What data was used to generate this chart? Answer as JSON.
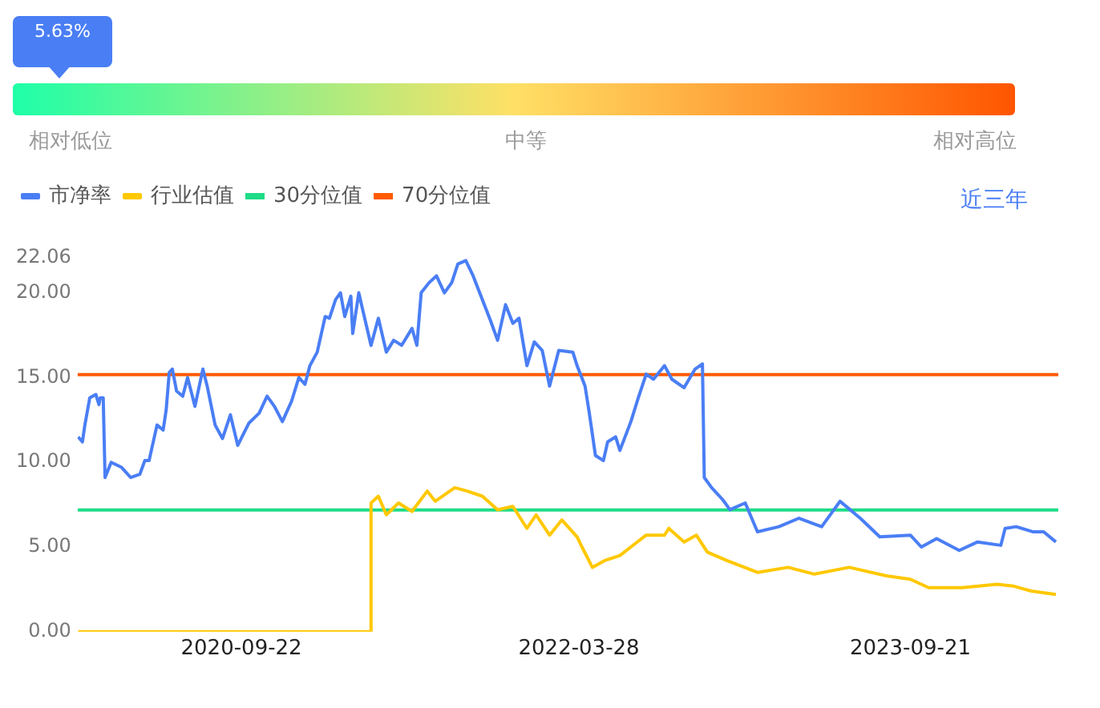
{
  "chart_data": {
    "type": "line",
    "annotations": [
      "5.63%",
      "相对低位",
      "中等",
      "相对高位",
      "近三年"
    ],
    "series": [
      {
        "name": "市净率",
        "color": "#4a7ef5",
        "x": [
          "2019-12-30",
          "2020-01-06",
          "2020-01-10",
          "2020-01-18",
          "2020-01-28",
          "2020-02-02",
          "2020-02-04",
          "2020-02-09",
          "2020-02-12",
          "2020-02-22",
          "2020-03-10",
          "2020-03-25",
          "2020-04-09",
          "2020-04-17",
          "2020-04-24",
          "2020-05-07",
          "2020-05-17",
          "2020-05-22",
          "2020-05-27",
          "2020-06-01",
          "2020-06-08",
          "2020-06-18",
          "2020-06-26",
          "2020-07-08",
          "2020-07-21",
          "2020-07-28",
          "2020-08-10",
          "2020-08-22",
          "2020-09-04",
          "2020-09-16",
          "2020-10-04",
          "2020-10-21",
          "2020-11-03",
          "2020-11-15",
          "2020-11-28",
          "2020-12-13",
          "2020-12-25",
          "2021-01-04",
          "2021-01-12",
          "2021-01-24",
          "2021-02-06",
          "2021-02-13",
          "2021-02-23",
          "2021-03-03",
          "2021-03-10",
          "2021-03-20",
          "2021-03-23",
          "2021-04-02",
          "2021-04-09",
          "2021-04-22",
          "2021-05-04",
          "2021-05-17",
          "2021-05-29",
          "2021-06-11",
          "2021-06-28",
          "2021-07-06",
          "2021-07-13",
          "2021-07-26",
          "2021-08-07",
          "2021-08-20",
          "2021-09-01",
          "2021-09-11",
          "2021-09-24",
          "2021-10-06",
          "2021-10-21",
          "2021-11-03",
          "2021-11-15",
          "2021-11-28",
          "2021-12-10",
          "2021-12-20",
          "2022-01-02",
          "2022-01-14",
          "2022-01-27",
          "2022-02-08",
          "2022-02-23",
          "2022-03-18",
          "2022-03-25",
          "2022-04-07",
          "2022-04-14",
          "2022-04-24",
          "2022-05-07",
          "2022-05-14",
          "2022-05-27",
          "2022-06-03",
          "2022-06-21",
          "2022-07-03",
          "2022-07-16",
          "2022-07-28",
          "2022-08-15",
          "2022-08-27",
          "2022-09-16",
          "2022-10-04",
          "2022-10-16",
          "2022-10-19",
          "2022-10-31",
          "2022-11-18",
          "2022-11-30",
          "2022-12-25",
          "2023-01-14",
          "2023-02-18",
          "2023-03-23",
          "2023-04-29",
          "2023-05-29",
          "2023-07-01",
          "2023-08-02",
          "2023-09-21",
          "2023-10-09",
          "2023-11-03",
          "2023-12-10",
          "2024-01-09",
          "2024-02-16",
          "2024-02-23",
          "2024-03-12",
          "2024-04-08",
          "2024-04-26",
          "2024-05-16"
        ],
        "values": [
          11.5,
          11.2,
          12.2,
          13.8,
          14.0,
          13.4,
          13.8,
          13.8,
          9.1,
          10.0,
          9.7,
          9.1,
          9.3,
          10.1,
          10.1,
          12.2,
          11.9,
          13.1,
          15.3,
          15.5,
          14.2,
          13.9,
          15.0,
          13.3,
          15.5,
          14.5,
          12.2,
          11.4,
          12.8,
          11.0,
          12.3,
          12.9,
          13.9,
          13.3,
          12.4,
          13.6,
          15.0,
          14.6,
          15.7,
          16.5,
          18.6,
          18.5,
          19.6,
          20.0,
          18.6,
          19.8,
          17.6,
          20.0,
          18.9,
          16.9,
          18.5,
          16.5,
          17.2,
          16.9,
          17.9,
          16.9,
          20.0,
          20.6,
          21.0,
          20.0,
          20.6,
          21.7,
          21.9,
          21.0,
          19.6,
          18.4,
          17.2,
          19.3,
          18.2,
          18.5,
          15.7,
          17.1,
          16.6,
          14.5,
          16.6,
          16.5,
          15.7,
          14.5,
          12.9,
          10.4,
          10.1,
          11.2,
          11.5,
          10.7,
          12.4,
          13.8,
          15.2,
          14.9,
          15.7,
          14.9,
          14.4,
          15.5,
          15.8,
          9.1,
          8.5,
          7.8,
          7.2,
          7.6,
          5.9,
          6.2,
          6.7,
          6.2,
          7.7,
          6.7,
          5.6,
          5.7,
          5.0,
          5.5,
          4.8,
          5.3,
          5.1,
          6.1,
          6.2,
          5.9,
          5.9,
          5.3
        ]
      },
      {
        "name": "行业估值",
        "color": "#ffc800",
        "x": [
          "2019-12-30",
          "2021-04-21",
          "2021-04-22",
          "2021-05-04",
          "2021-05-17",
          "2021-06-06",
          "2021-06-28",
          "2021-07-23",
          "2021-08-05",
          "2021-09-06",
          "2021-09-26",
          "2021-10-21",
          "2021-11-15",
          "2021-12-10",
          "2022-01-02",
          "2022-01-17",
          "2022-02-08",
          "2022-02-28",
          "2022-03-25",
          "2022-04-02",
          "2022-04-19",
          "2022-05-09",
          "2022-06-03",
          "2022-06-28",
          "2022-07-16",
          "2022-08-15",
          "2022-08-22",
          "2022-09-16",
          "2022-10-06",
          "2022-10-24",
          "2022-11-25",
          "2023-01-14",
          "2023-03-05",
          "2023-04-17",
          "2023-06-13",
          "2023-08-13",
          "2023-09-21",
          "2023-10-21",
          "2023-12-15",
          "2024-02-10",
          "2024-03-07",
          "2024-04-06",
          "2024-05-16"
        ],
        "values": [
          0,
          0,
          7.6,
          8.0,
          6.9,
          7.6,
          7.1,
          8.3,
          7.7,
          8.5,
          8.3,
          8.0,
          7.2,
          7.4,
          6.1,
          6.9,
          5.7,
          6.6,
          5.6,
          5.0,
          3.8,
          4.2,
          4.5,
          5.2,
          5.7,
          5.7,
          6.1,
          5.3,
          5.7,
          4.7,
          4.2,
          3.5,
          3.8,
          3.4,
          3.8,
          3.3,
          3.1,
          2.6,
          2.6,
          2.8,
          2.7,
          2.4,
          2.2
        ]
      }
    ],
    "ref_lines": [
      {
        "axis": "y",
        "value": 7.18,
        "label": "30分位值",
        "color": "#1edc87"
      },
      {
        "axis": "y",
        "value": 15.17,
        "label": "70分位值",
        "color": "#ff5a00"
      }
    ],
    "xlim": [
      "2019-12-29",
      "2024-05-20"
    ],
    "xticks": [
      "2020-09-22",
      "2022-03-28",
      "2023-09-21"
    ],
    "ylim": [
      0,
      22.06
    ],
    "yticks": [
      {
        "value": 0,
        "label": "0.00"
      },
      {
        "value": 5,
        "label": "5.00"
      },
      {
        "value": 10,
        "label": "10.00"
      },
      {
        "value": 15,
        "label": "15.00"
      },
      {
        "value": 20,
        "label": "20.00"
      },
      {
        "value": 22.06,
        "label": "22.06"
      }
    ],
    "grid": false,
    "legend": "top left",
    "marker": "none",
    "line_style": "solid"
  }
}
